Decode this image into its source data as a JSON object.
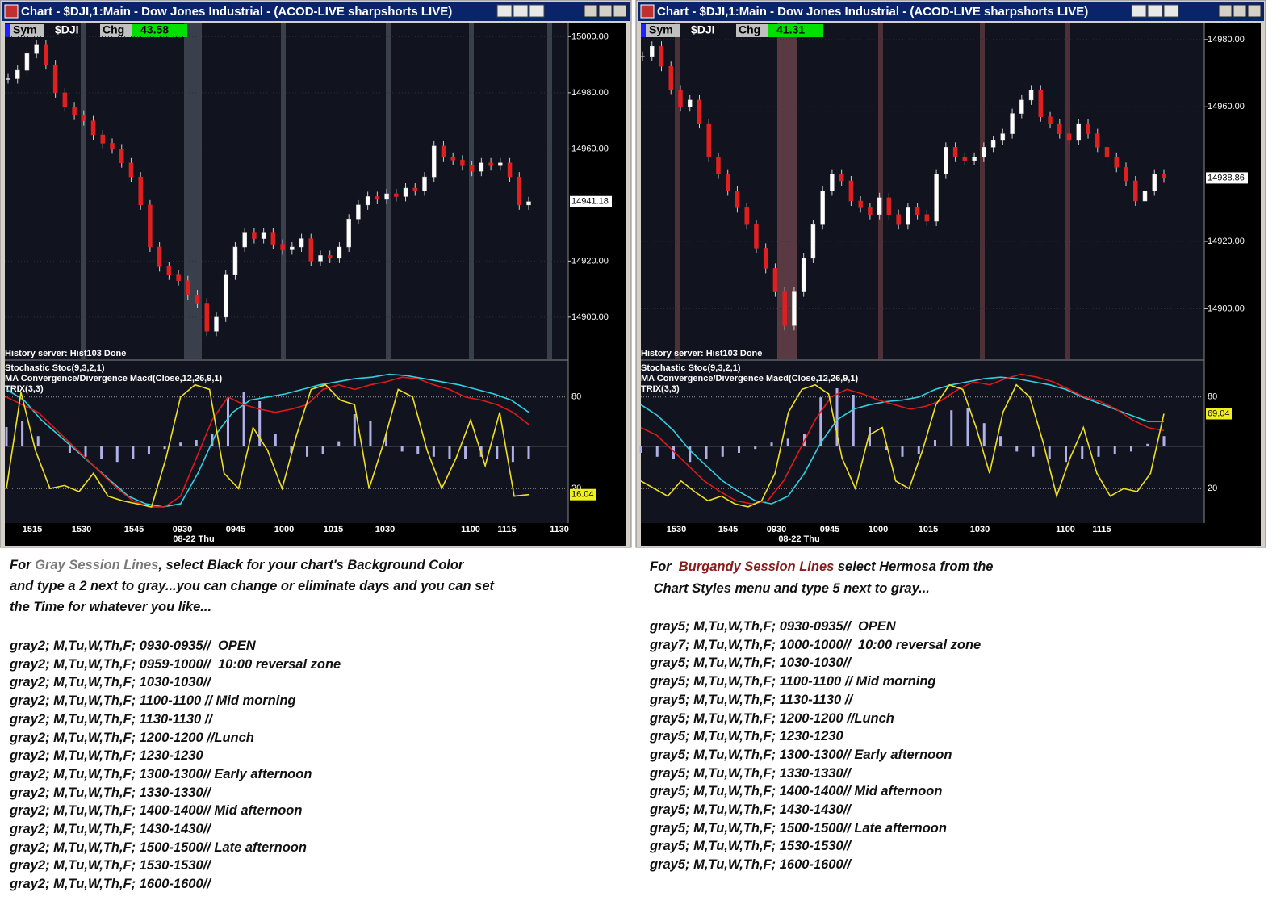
{
  "windows": [
    {
      "title": "Chart - $DJI,1:Main - Dow Jones Industrial - (ACOD-LIVE sharpshorts LIVE)",
      "sym_label": "Sym",
      "symbol": "$DJI",
      "chg_label": "Chg",
      "chg": "43.58",
      "ylim": [
        14885,
        15005
      ],
      "price_ticks": [
        {
          "value": 15000,
          "label": "15000.00"
        },
        {
          "value": 14980,
          "label": "14980.00"
        },
        {
          "value": 14960,
          "label": "14960.00"
        },
        {
          "value": 14920,
          "label": "14920.00"
        },
        {
          "value": 14900,
          "label": "14900.00"
        }
      ],
      "last_price": 14941.18,
      "status": "History server: Hist103 Done",
      "indicators": [
        "Stochastic Stoc(9,3,2,1)",
        "MA Convergence/Divergence Macd(Close,12,26,9,1)",
        "TRIX(3,3)"
      ],
      "osc_ticks": [
        80,
        20
      ],
      "osc_last": 16.04,
      "x_labels": [
        "1515",
        "1530",
        "1545",
        "0930",
        "0945",
        "1000",
        "1015",
        "1030",
        "1100",
        "1115",
        "1130"
      ],
      "date_label": "08-22 Thu",
      "closes": [
        14985,
        14988,
        14994,
        14997,
        14990,
        14980,
        14975,
        14972,
        14970,
        14965,
        14962,
        14960,
        14955,
        14950,
        14940,
        14925,
        14918,
        14915,
        14913,
        14908,
        14905,
        14895,
        14900,
        14915,
        14925,
        14930,
        14928,
        14930,
        14926,
        14924,
        14925,
        14928,
        14920,
        14922,
        14921,
        14925,
        14935,
        14940,
        14943,
        14942,
        14944,
        14943,
        14946,
        14945,
        14950,
        14961,
        14957,
        14956,
        14954,
        14952,
        14955,
        14954,
        14955,
        14950,
        14940,
        14941.18
      ],
      "stoch": [
        20,
        83,
        45,
        20,
        22,
        18,
        30,
        15,
        12,
        10,
        8,
        40,
        80,
        88,
        85,
        30,
        20,
        60,
        45,
        20,
        55,
        85,
        88,
        78,
        75,
        20,
        50,
        85,
        80,
        45,
        20,
        40,
        65,
        35,
        70,
        15,
        16.04
      ],
      "macd": [
        80,
        75,
        70,
        60,
        50,
        40,
        30,
        20,
        12,
        8,
        8,
        15,
        40,
        65,
        80,
        75,
        72,
        70,
        72,
        75,
        85,
        88,
        85,
        88,
        90,
        93,
        92,
        88,
        85,
        80,
        78,
        75,
        70,
        62
      ],
      "trix": [
        85,
        78,
        65,
        55,
        45,
        35,
        25,
        15,
        10,
        8,
        10,
        30,
        55,
        70,
        78,
        80,
        82,
        85,
        88,
        90,
        92,
        93,
        95,
        94,
        92,
        90,
        88,
        85,
        82,
        78,
        70
      ],
      "histogram": [
        15,
        20,
        8,
        0,
        -5,
        -8,
        -10,
        -12,
        -10,
        -6,
        -2,
        3,
        5,
        10,
        38,
        42,
        35,
        10,
        -5,
        -8,
        -6,
        4,
        25,
        20,
        10,
        -4,
        -6,
        -8,
        -10,
        -10,
        -8,
        -10,
        -12,
        -10
      ]
    },
    {
      "title": "Chart - $DJI,1:Main - Dow Jones Industrial - (ACOD-LIVE sharpshorts LIVE)",
      "sym_label": "Sym",
      "symbol": "$DJI",
      "chg_label": "Chg",
      "chg": "41.31",
      "ylim": [
        14885,
        14985
      ],
      "price_ticks": [
        {
          "value": 14980,
          "label": "14980.00"
        },
        {
          "value": 14960,
          "label": "14960.00"
        },
        {
          "value": 14920,
          "label": "14920.00"
        },
        {
          "value": 14900,
          "label": "14900.00"
        }
      ],
      "last_price": 14938.86,
      "status": "History server: Hist103 Done",
      "indicators": [
        "Stochastic Stoc(9,3,2,1)",
        "MA Convergence/Divergence Macd(Close,12,26,9,1)",
        "TRIX(3,3)"
      ],
      "osc_ticks": [
        80,
        20
      ],
      "osc_last": 69.04,
      "x_labels": [
        "1530",
        "1545",
        "0930",
        "0945",
        "1000",
        "1015",
        "1030",
        "1100",
        "1115"
      ],
      "date_label": "08-22 Thu",
      "closes": [
        14975,
        14978,
        14972,
        14965,
        14960,
        14962,
        14955,
        14945,
        14940,
        14935,
        14930,
        14925,
        14918,
        14912,
        14905,
        14895,
        14905,
        14915,
        14925,
        14935,
        14940,
        14938,
        14932,
        14930,
        14928,
        14933,
        14928,
        14925,
        14930,
        14928,
        14926,
        14940,
        14948,
        14945,
        14944,
        14945,
        14948,
        14950,
        14952,
        14958,
        14962,
        14965,
        14957,
        14955,
        14952,
        14950,
        14955,
        14952,
        14948,
        14945,
        14942,
        14938,
        14932,
        14935,
        14940,
        14938.86
      ],
      "stoch": [
        25,
        20,
        15,
        25,
        18,
        12,
        15,
        10,
        8,
        12,
        30,
        70,
        85,
        88,
        82,
        40,
        20,
        55,
        60,
        25,
        20,
        45,
        75,
        88,
        85,
        60,
        30,
        70,
        88,
        80,
        50,
        15,
        40,
        60,
        30,
        15,
        20,
        18,
        30,
        69.04
      ],
      "macd": [
        60,
        55,
        45,
        35,
        25,
        18,
        12,
        10,
        12,
        25,
        45,
        65,
        80,
        85,
        82,
        78,
        75,
        72,
        74,
        78,
        85,
        90,
        88,
        92,
        95,
        93,
        90,
        85,
        80,
        77,
        72,
        65,
        60,
        58
      ],
      "trix": [
        75,
        68,
        58,
        45,
        35,
        25,
        18,
        12,
        10,
        15,
        30,
        50,
        65,
        72,
        75,
        77,
        78,
        80,
        85,
        88,
        90,
        92,
        93,
        92,
        90,
        88,
        85,
        80,
        76,
        72,
        68,
        64,
        64
      ],
      "histogram": [
        -5,
        -8,
        -10,
        -12,
        -10,
        -8,
        -5,
        -2,
        3,
        6,
        10,
        38,
        45,
        40,
        15,
        -3,
        -8,
        -6,
        5,
        28,
        30,
        18,
        8,
        -4,
        -8,
        -10,
        -12,
        -10,
        -8,
        -6,
        -4,
        2,
        8
      ]
    }
  ],
  "notes": [
    {
      "intro": {
        "before": "For ",
        "highlight": "Gray Session Lines",
        "after": ", select Black for your chart's Background Color"
      },
      "paragraph": [
        "and type a 2 next to gray...you can change or eliminate days and you can set",
        "the Time for whatever you like..."
      ],
      "lines": [
        "gray2; M,Tu,W,Th,F; 0930-0935//  OPEN",
        "gray2; M,Tu,W,Th,F; 0959-1000//  10:00 reversal zone",
        "gray2; M,Tu,W,Th,F; 1030-1030//",
        "gray2; M,Tu,W,Th,F; 1100-1100 // Mid morning",
        "gray2; M,Tu,W,Th,F; 1130-1130 //",
        "gray2; M,Tu,W,Th,F; 1200-1200 //Lunch",
        "gray2; M,Tu,W,Th,F; 1230-1230",
        "gray2; M,Tu,W,Th,F; 1300-1300// Early afternoon",
        "gray2; M,Tu,W,Th,F; 1330-1330//",
        "gray2; M,Tu,W,Th,F; 1400-1400// Mid afternoon",
        "gray2; M,Tu,W,Th,F; 1430-1430//",
        "gray2; M,Tu,W,Th,F; 1500-1500// Late afternoon",
        "gray2; M,Tu,W,Th,F; 1530-1530//",
        "gray2; M,Tu,W,Th,F; 1600-1600//"
      ]
    },
    {
      "intro": {
        "before": "For  ",
        "highlight": "Burgandy Session Lines",
        "after": " select Hermosa from the"
      },
      "paragraph": [
        " Chart Styles menu and type 5 next to gray..."
      ],
      "lines": [
        "gray5; M,Tu,W,Th,F; 0930-0935//  OPEN",
        "gray7; M,Tu,W,Th,F; 1000-1000//  10:00 reversal zone",
        "gray5; M,Tu,W,Th,F; 1030-1030//",
        "gray5; M,Tu,W,Th,F; 1100-1100 // Mid morning",
        "gray5; M,Tu,W,Th,F; 1130-1130 //",
        "gray5; M,Tu,W,Th,F; 1200-1200 //Lunch",
        "gray5; M,Tu,W,Th,F; 1230-1230",
        "gray5; M,Tu,W,Th,F; 1300-1300// Early afternoon",
        "gray5; M,Tu,W,Th,F; 1330-1330//",
        "gray5; M,Tu,W,Th,F; 1400-1400// Mid afternoon",
        "gray5; M,Tu,W,Th,F; 1430-1430//",
        "gray5; M,Tu,W,Th,F; 1500-1500// Late afternoon",
        "gray5; M,Tu,W,Th,F; 1530-1530//",
        "gray5; M,Tu,W,Th,F; 1600-1600//"
      ]
    }
  ]
}
